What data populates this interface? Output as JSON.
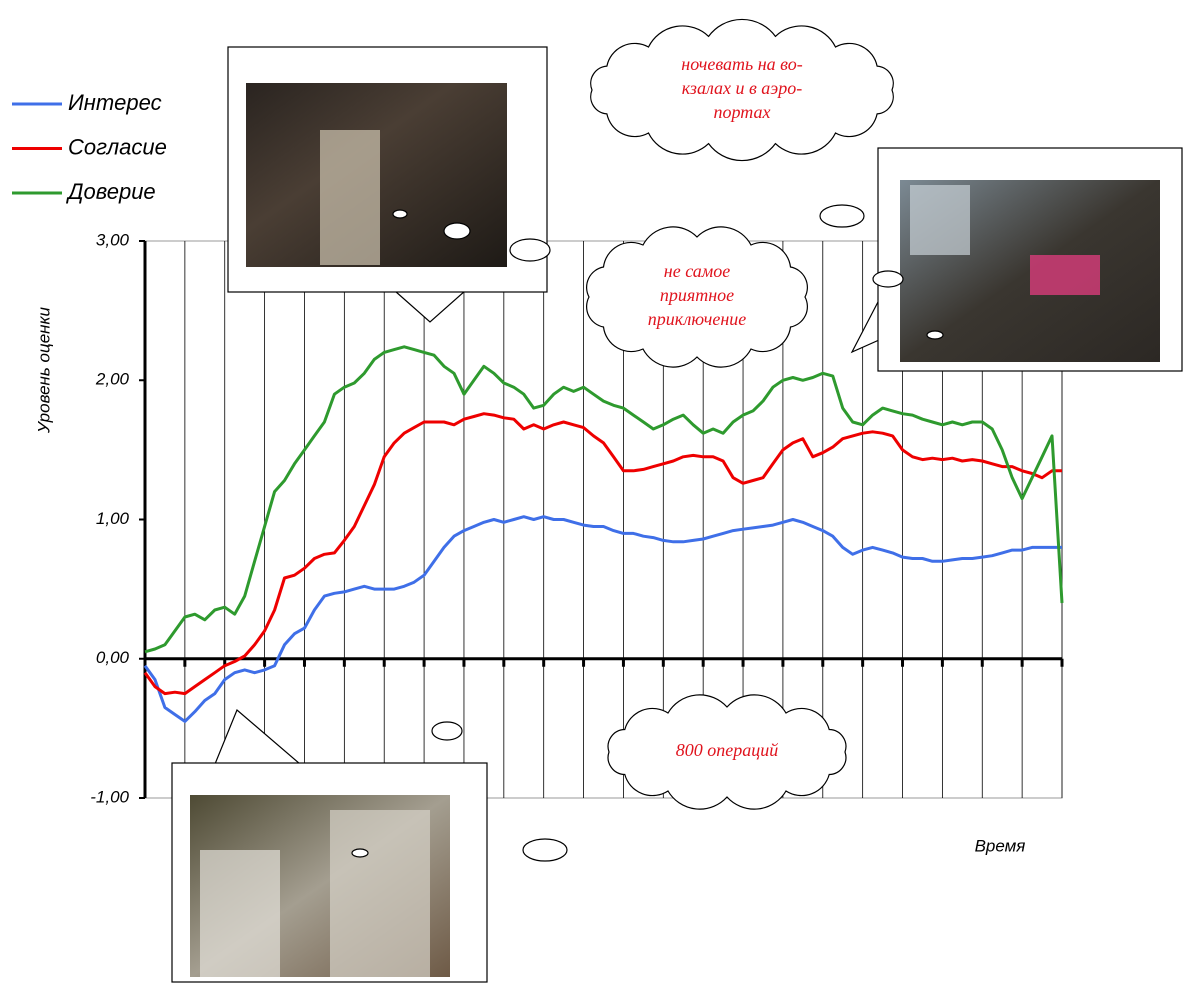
{
  "chart_data": {
    "type": "line",
    "y_label": "Уровень оценки",
    "x_label": "Время",
    "ylim": [
      -1,
      3
    ],
    "yticks": [
      {
        "value": -1,
        "label": "-1,00"
      },
      {
        "value": 0,
        "label": "0,00"
      },
      {
        "value": 1,
        "label": "1,00"
      },
      {
        "value": 2,
        "label": "2,00"
      },
      {
        "value": 3,
        "label": "3,00"
      }
    ],
    "grid": true,
    "legend": "top-left",
    "series": [
      {
        "name": "Интерес",
        "color": "#3f6fe8",
        "values": [
          -0.05,
          -0.15,
          -0.35,
          -0.4,
          -0.45,
          -0.38,
          -0.3,
          -0.25,
          -0.15,
          -0.1,
          -0.08,
          -0.1,
          -0.08,
          -0.05,
          0.1,
          0.18,
          0.22,
          0.35,
          0.45,
          0.47,
          0.48,
          0.5,
          0.52,
          0.5,
          0.5,
          0.5,
          0.52,
          0.55,
          0.6,
          0.7,
          0.8,
          0.88,
          0.92,
          0.95,
          0.98,
          1.0,
          0.98,
          1.0,
          1.02,
          1.0,
          1.02,
          1.0,
          1.0,
          0.98,
          0.96,
          0.95,
          0.95,
          0.92,
          0.9,
          0.9,
          0.88,
          0.87,
          0.85,
          0.84,
          0.84,
          0.85,
          0.86,
          0.88,
          0.9,
          0.92,
          0.93,
          0.94,
          0.95,
          0.96,
          0.98,
          1.0,
          0.98,
          0.95,
          0.92,
          0.88,
          0.8,
          0.75,
          0.78,
          0.8,
          0.78,
          0.76,
          0.73,
          0.72,
          0.72,
          0.7,
          0.7,
          0.71,
          0.72,
          0.72,
          0.73,
          0.74,
          0.76,
          0.78,
          0.78,
          0.8,
          0.8,
          0.8,
          0.8
        ]
      },
      {
        "name": "Согласие",
        "color": "#ee0000",
        "values": [
          -0.1,
          -0.2,
          -0.25,
          -0.24,
          -0.25,
          -0.2,
          -0.15,
          -0.1,
          -0.05,
          -0.02,
          0.02,
          0.1,
          0.2,
          0.35,
          0.58,
          0.6,
          0.65,
          0.72,
          0.75,
          0.76,
          0.85,
          0.95,
          1.1,
          1.25,
          1.45,
          1.55,
          1.62,
          1.66,
          1.7,
          1.7,
          1.7,
          1.68,
          1.72,
          1.74,
          1.76,
          1.75,
          1.73,
          1.72,
          1.65,
          1.68,
          1.65,
          1.68,
          1.7,
          1.68,
          1.66,
          1.6,
          1.55,
          1.45,
          1.35,
          1.35,
          1.36,
          1.38,
          1.4,
          1.42,
          1.45,
          1.46,
          1.45,
          1.45,
          1.42,
          1.3,
          1.26,
          1.28,
          1.3,
          1.4,
          1.5,
          1.55,
          1.58,
          1.45,
          1.48,
          1.52,
          1.58,
          1.6,
          1.62,
          1.63,
          1.62,
          1.6,
          1.5,
          1.45,
          1.43,
          1.44,
          1.43,
          1.44,
          1.42,
          1.43,
          1.42,
          1.4,
          1.38,
          1.38,
          1.35,
          1.33,
          1.3,
          1.35,
          1.35
        ]
      },
      {
        "name": "Доверие",
        "color": "#2e9a2e",
        "values": [
          0.05,
          0.07,
          0.1,
          0.2,
          0.3,
          0.32,
          0.28,
          0.35,
          0.37,
          0.32,
          0.45,
          0.7,
          0.95,
          1.2,
          1.28,
          1.4,
          1.5,
          1.6,
          1.7,
          1.9,
          1.95,
          1.98,
          2.05,
          2.15,
          2.2,
          2.22,
          2.24,
          2.22,
          2.2,
          2.18,
          2.1,
          2.05,
          1.9,
          2.0,
          2.1,
          2.05,
          1.98,
          1.95,
          1.9,
          1.8,
          1.82,
          1.9,
          1.95,
          1.92,
          1.95,
          1.9,
          1.85,
          1.82,
          1.8,
          1.75,
          1.7,
          1.65,
          1.68,
          1.72,
          1.75,
          1.68,
          1.62,
          1.65,
          1.62,
          1.7,
          1.75,
          1.78,
          1.85,
          1.95,
          2.0,
          2.02,
          2.0,
          2.02,
          2.05,
          2.03,
          1.8,
          1.7,
          1.68,
          1.75,
          1.8,
          1.78,
          1.76,
          1.75,
          1.72,
          1.7,
          1.68,
          1.7,
          1.68,
          1.7,
          1.7,
          1.65,
          1.5,
          1.3,
          1.15,
          1.3,
          1.45,
          1.6,
          0.4
        ]
      }
    ],
    "annotations": [
      {
        "lines": [
          "ночевать на во-",
          "кзалах и в аэро-",
          "портах"
        ]
      },
      {
        "lines": [
          "не самое",
          "приятное",
          "приключение"
        ]
      },
      {
        "lines": [
          "800 операций"
        ]
      }
    ]
  }
}
